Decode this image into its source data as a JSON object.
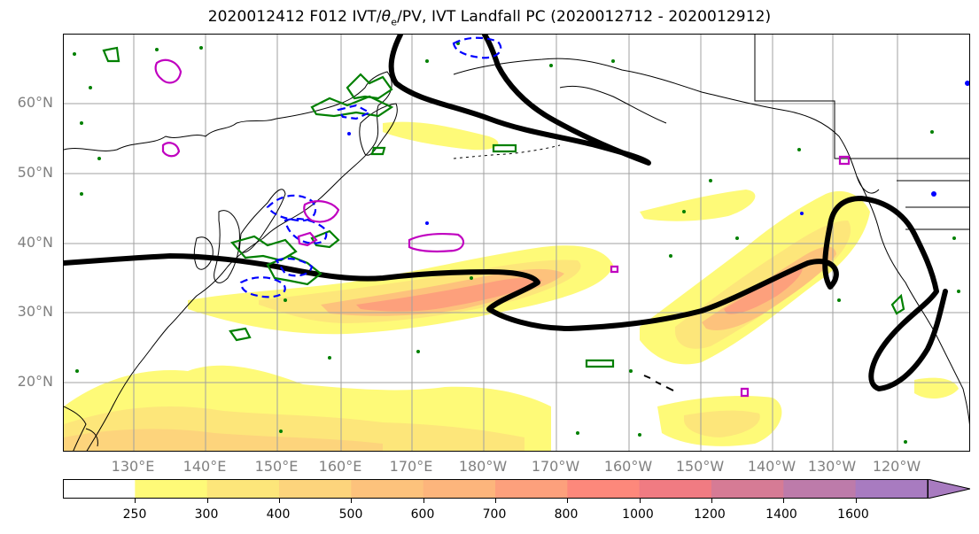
{
  "title": {
    "prefix": "2020012412 F012 IVT/",
    "theta": "θ",
    "theta_sub": "e",
    "suffix": "/PV, IVT Landfall PC (2020012712 - 2020012912)"
  },
  "latitude_labels": [
    "60°N",
    "50°N",
    "40°N",
    "30°N",
    "20°N"
  ],
  "longitude_labels": [
    "130°E",
    "140°E",
    "150°E",
    "160°E",
    "170°E",
    "180°W",
    "170°W",
    "160°W",
    "150°W",
    "140°W",
    "130°W",
    "120°W"
  ],
  "colorbar": {
    "labels": [
      "250",
      "300",
      "400",
      "500",
      "600",
      "700",
      "800",
      "1000",
      "1200",
      "1400",
      "1600"
    ],
    "colors": [
      "#ffffff",
      "#fefa78",
      "#fde67a",
      "#fdd47c",
      "#fdc27c",
      "#fdb57c",
      "#fda07c",
      "#fd887b",
      "#f07b82",
      "#d67b95",
      "#bd7baa",
      "#a87bc0"
    ]
  },
  "legend_colors": {
    "ivt_contour_black": "#000000",
    "theta_e_green": "#008000",
    "pv_blue": "#0000ff",
    "pv_magenta": "#c000c0"
  }
}
